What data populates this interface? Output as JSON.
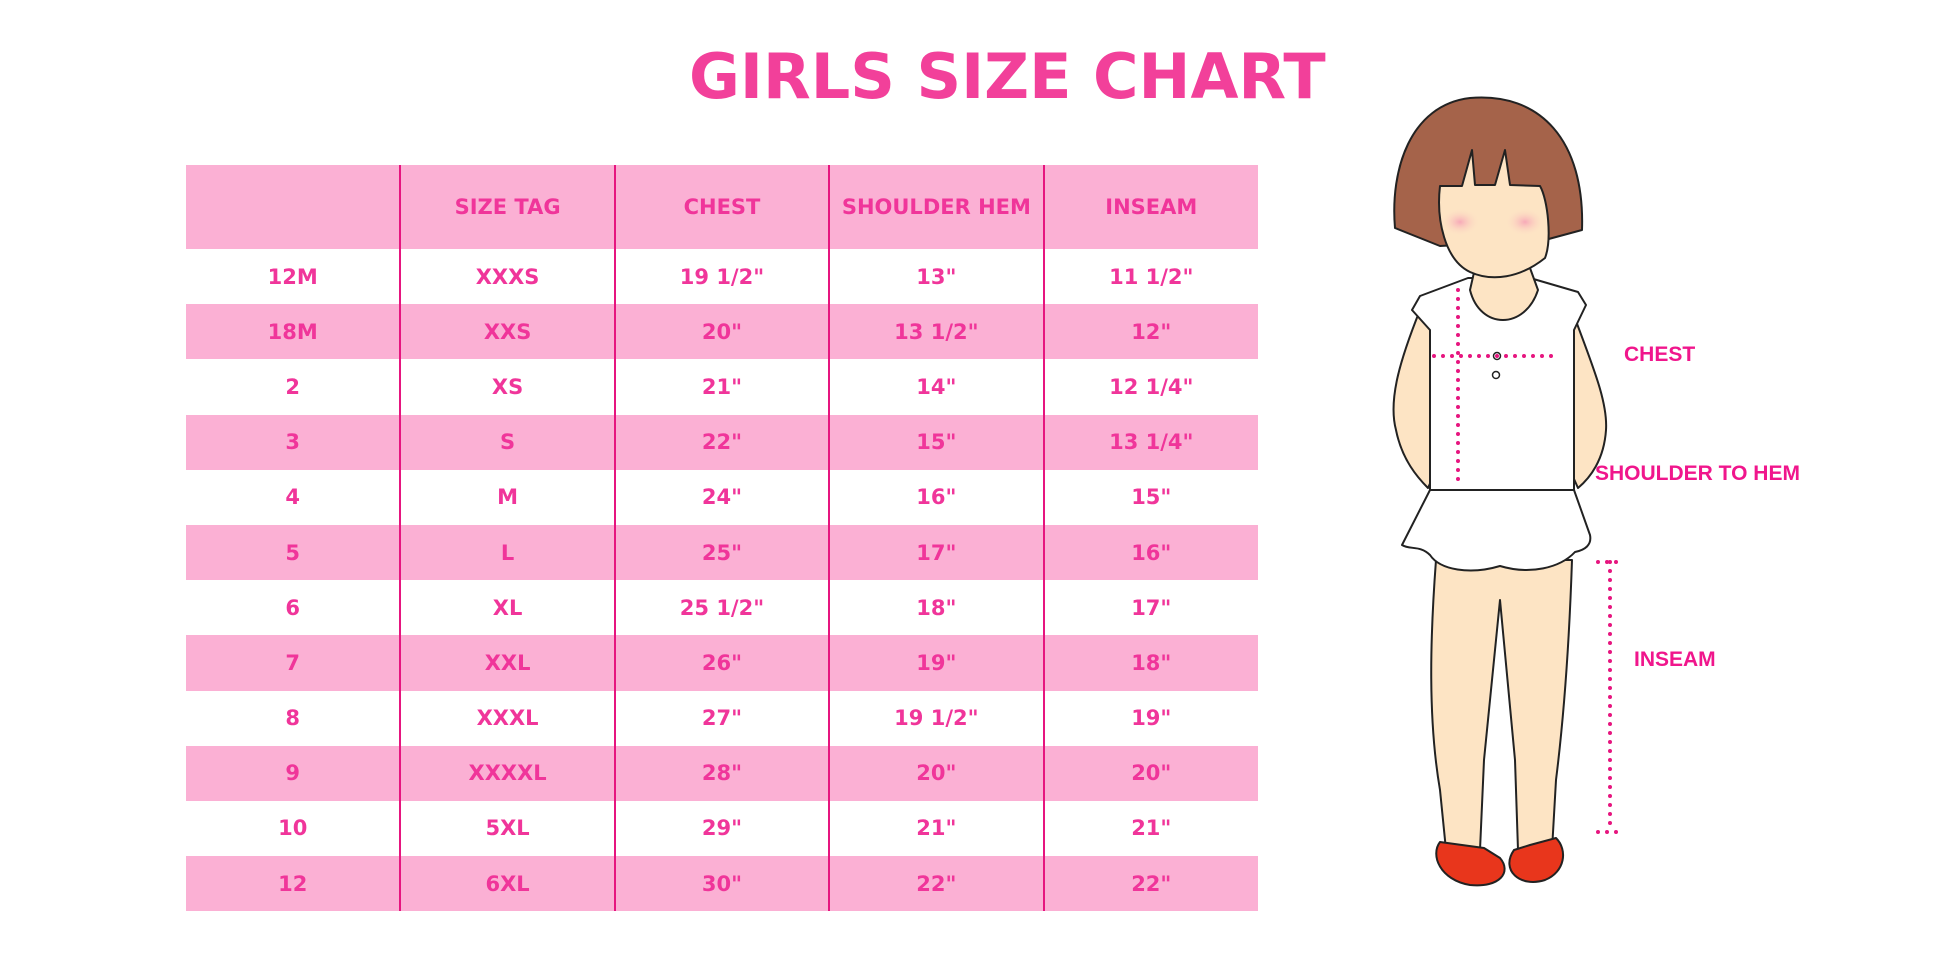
{
  "title": "GIRLS SIZE CHART",
  "colors": {
    "accent": "#f2409a",
    "header_bg": "#fbb0d4",
    "divider": "#e6157f",
    "label": "#f0168c"
  },
  "table": {
    "headers": [
      "",
      "SIZE TAG",
      "CHEST",
      "SHOULDER HEM",
      "INSEAM"
    ],
    "rows": [
      [
        "12M",
        "XXXS",
        "19 1/2\"",
        "13\"",
        "11 1/2\""
      ],
      [
        "18M",
        "XXS",
        "20\"",
        "13 1/2\"",
        "12\""
      ],
      [
        "2",
        "XS",
        "21\"",
        "14\"",
        "12 1/4\""
      ],
      [
        "3",
        "S",
        "22\"",
        "15\"",
        "13 1/4\""
      ],
      [
        "4",
        "M",
        "24\"",
        "16\"",
        "15\""
      ],
      [
        "5",
        "L",
        "25\"",
        "17\"",
        "16\""
      ],
      [
        "6",
        "XL",
        "25 1/2\"",
        "18\"",
        "17\""
      ],
      [
        "7",
        "XXL",
        "26\"",
        "19\"",
        "18\""
      ],
      [
        "8",
        "XXXL",
        "27\"",
        "19 1/2\"",
        "19\""
      ],
      [
        "9",
        "XXXXL",
        "28\"",
        "20\"",
        "20\""
      ],
      [
        "10",
        "5XL",
        "29\"",
        "21\"",
        "21\""
      ],
      [
        "12",
        "6XL",
        "30\"",
        "22\"",
        "22\""
      ]
    ]
  },
  "figure": {
    "labels": {
      "chest": "CHEST",
      "shoulder_to_hem": "SHOULDER TO HEM",
      "inseam": "INSEAM"
    }
  }
}
